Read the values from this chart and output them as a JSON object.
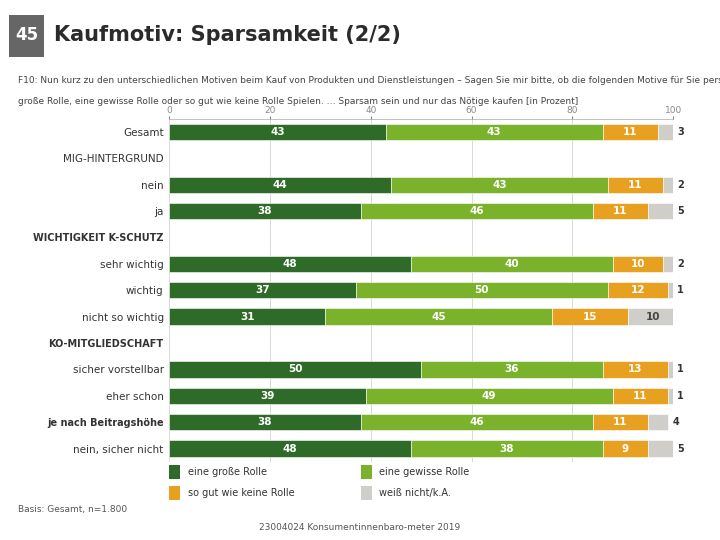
{
  "title": "Kaufmotiv: Sparsamkeit (2/2)",
  "title_badge": "45",
  "subtitle_line1": "F10: Nun kurz zu den unterschiedlichen Motiven beim Kauf von Produkten und Dienstleistungen – Sagen Sie mir bitte, ob die folgenden Motive für Sie persönlich dabei eine",
  "subtitle_line2": "große Rolle, eine gewisse Rolle oder so gut wie keine Rolle Spielen. … Sparsam sein und nur das Nötige kaufen [in Prozent]",
  "footer_left": "Basis: Gesamt, n=1.800",
  "footer_center": "23004024 Konsumentinnenbaro­meter 2019",
  "categories": [
    "Gesamt",
    "MIG-HINTERGRUND",
    "nein",
    "ja",
    "WICHTIGKEIT K-SCHUTZ",
    "sehr wichtig",
    "wichtig",
    "nicht so wichtig",
    "KO-MITGLIEDSCHAFT",
    "sicher vorstellbar",
    "eher schon",
    "je nach Beitragshöhe",
    "nein, sicher nicht"
  ],
  "is_header": [
    false,
    true,
    false,
    false,
    true,
    false,
    false,
    false,
    true,
    false,
    false,
    false,
    false
  ],
  "data": [
    [
      43,
      43,
      11,
      3
    ],
    [
      0,
      0,
      0,
      0
    ],
    [
      44,
      43,
      11,
      2
    ],
    [
      38,
      46,
      11,
      5
    ],
    [
      0,
      0,
      0,
      0
    ],
    [
      48,
      40,
      10,
      2
    ],
    [
      37,
      50,
      12,
      1
    ],
    [
      31,
      45,
      15,
      10
    ],
    [
      0,
      0,
      0,
      0
    ],
    [
      50,
      36,
      13,
      1
    ],
    [
      39,
      49,
      11,
      1
    ],
    [
      38,
      46,
      11,
      4
    ],
    [
      48,
      38,
      9,
      5
    ]
  ],
  "colors": [
    "#2e6b28",
    "#7ab22b",
    "#e8a020",
    "#d0cec8"
  ],
  "legend_labels": [
    "eine große Rolle",
    "eine gewisse Rolle",
    "so gut wie keine Rolle",
    "weiß nicht/k.A."
  ],
  "background_color": "#ffffff",
  "bar_height": 0.62,
  "font_size_bars": 7.5,
  "font_size_labels": 7.5,
  "font_size_title": 15,
  "font_size_subtitle": 6.5,
  "font_size_footer": 6.5,
  "font_size_legend": 7,
  "font_size_tick": 7.5,
  "font_size_xtick": 6.5
}
